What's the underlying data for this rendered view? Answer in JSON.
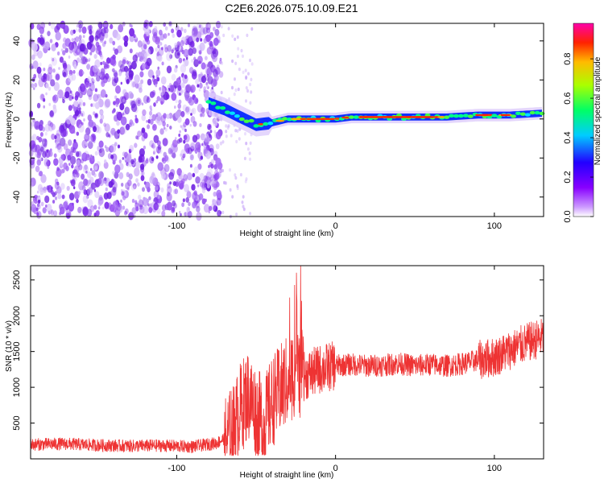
{
  "title": "C2E6.2026.075.10.09.E21",
  "colors": {
    "snr_line": "#ee3333",
    "background": "#ffffff",
    "scatter_noise": "#8a3df0"
  },
  "chart_data": [
    {
      "type": "heatmap",
      "xlabel": "Height of straight line (km)",
      "ylabel": "Frequency (Hz)",
      "xlim": [
        -192,
        131
      ],
      "ylim": [
        -50,
        49
      ],
      "xticks": [
        -100,
        0,
        100
      ],
      "xtick_labels": [
        "-100",
        "0",
        "100"
      ],
      "yticks": [
        -40,
        -20,
        0,
        20,
        40
      ],
      "ytick_labels": [
        "-40",
        "-20",
        "0",
        "20",
        "40"
      ],
      "colorbar": {
        "label": "Normalized spectral amplitude",
        "range": [
          0,
          0.98
        ],
        "ticks": [
          0,
          0.2,
          0.4,
          0.6,
          0.8
        ],
        "tick_labels": [
          "0.0",
          "0.2",
          "0.4",
          "0.6",
          "0.8"
        ],
        "colormap": "rainbow (purple-blue-cyan-green-yellow-red-magenta)"
      },
      "noise_region_x": [
        -192,
        -72
      ],
      "signal_track": {
        "x": [
          -80,
          -70,
          -60,
          -50,
          -40,
          -30,
          -20,
          -10,
          0,
          10,
          30,
          50,
          70,
          90,
          110,
          131
        ],
        "freq": [
          8,
          5,
          1,
          -3,
          -2,
          0,
          0,
          0,
          0,
          1,
          1,
          1,
          1,
          2,
          2,
          3
        ]
      }
    },
    {
      "type": "line",
      "xlabel": "Height of straight line (km)",
      "ylabel": "SNR (10 * v/v)",
      "xlim": [
        -192,
        131
      ],
      "ylim": [
        0,
        2700
      ],
      "xticks": [
        -100,
        0,
        100
      ],
      "xtick_labels": [
        "-100",
        "0",
        "100"
      ],
      "yticks": [
        500,
        1000,
        1500,
        2000,
        2500
      ],
      "ytick_labels": [
        "500",
        "1000",
        "1500",
        "2000",
        "2500"
      ],
      "series": [
        {
          "x": [
            -192,
            -170,
            -150,
            -130,
            -110,
            -90,
            -75,
            -65,
            -60,
            -55,
            -50,
            -45,
            -40,
            -35,
            -30,
            -25,
            -20,
            -15,
            -10,
            -5,
            0,
            10,
            20,
            30,
            40,
            50,
            60,
            70,
            80,
            90,
            100,
            110,
            120,
            131
          ],
          "y": [
            200,
            210,
            190,
            180,
            185,
            170,
            220,
            350,
            700,
            900,
            650,
            500,
            800,
            950,
            1100,
            1250,
            1150,
            1200,
            1250,
            1280,
            1300,
            1320,
            1300,
            1310,
            1330,
            1300,
            1320,
            1300,
            1330,
            1380,
            1420,
            1520,
            1620,
            1700
          ]
        }
      ]
    }
  ]
}
